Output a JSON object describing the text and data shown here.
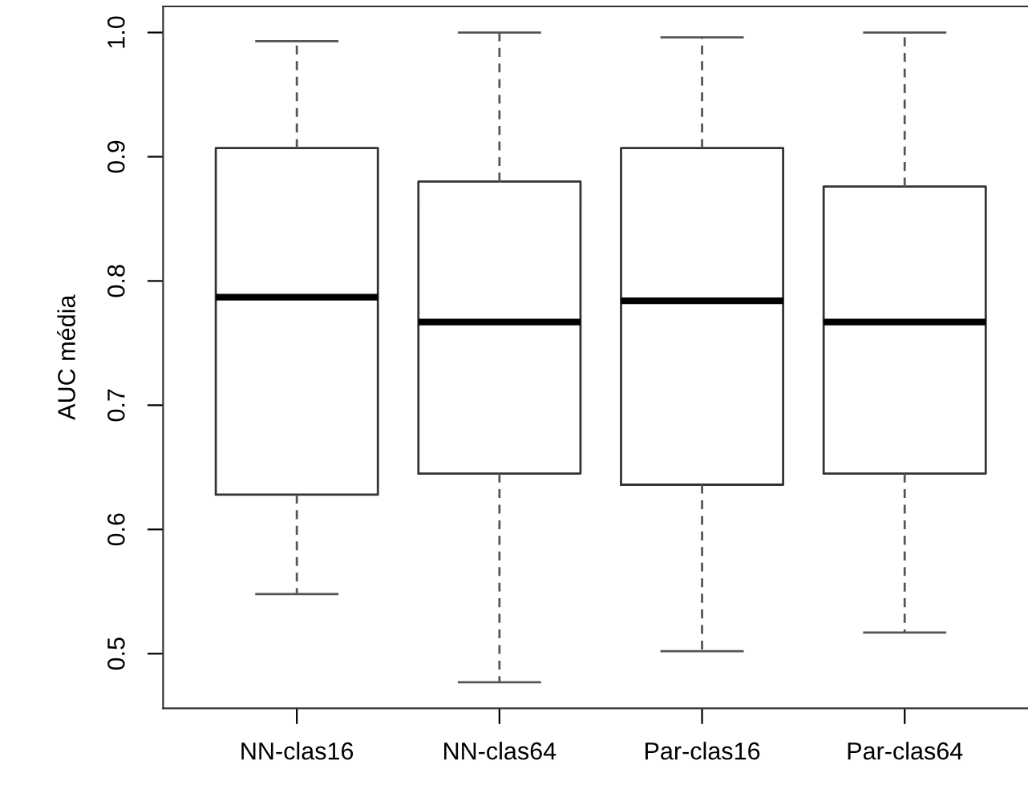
{
  "chart_data": {
    "type": "box",
    "ylabel": "AUC média",
    "categories": [
      "NN-clas16",
      "NN-clas64",
      "Par-clas16",
      "Par-clas64"
    ],
    "boxes": [
      {
        "low": 0.548,
        "q1": 0.628,
        "median": 0.787,
        "q3": 0.907,
        "high": 0.993
      },
      {
        "low": 0.477,
        "q1": 0.645,
        "median": 0.767,
        "q3": 0.88,
        "high": 1.0
      },
      {
        "low": 0.502,
        "q1": 0.636,
        "median": 0.784,
        "q3": 0.907,
        "high": 0.996
      },
      {
        "low": 0.517,
        "q1": 0.645,
        "median": 0.767,
        "q3": 0.876,
        "high": 1.0
      }
    ],
    "ylim": [
      0.456,
      1.021
    ],
    "yticks": [
      0.5,
      0.6,
      0.7,
      0.8,
      0.9,
      {
        "value": 1,
        "label": "1.0"
      }
    ],
    "grid": false
  }
}
